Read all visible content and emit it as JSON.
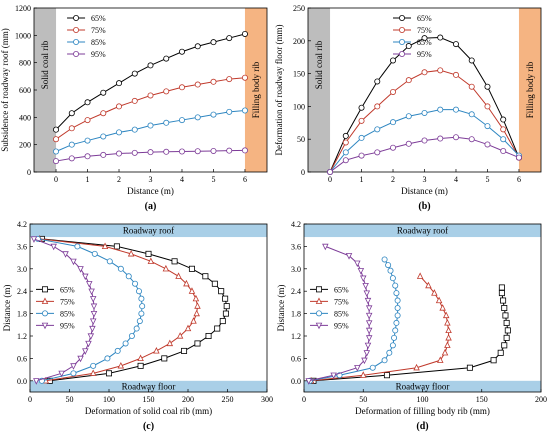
{
  "chart_data": [
    {
      "type": "line",
      "caption": "(a)",
      "xlabel": "Distance (m)",
      "ylabel": "Subsidence of roadway roof (mm)",
      "xlim": [
        -0.7,
        6.7
      ],
      "ylim": [
        0,
        1200
      ],
      "xticks": [
        0,
        1,
        2,
        3,
        4,
        5,
        6
      ],
      "yticks": [
        0,
        200,
        400,
        600,
        800,
        1000,
        1200
      ],
      "left_band": "Solid coal rib",
      "right_band": "Filling body rib",
      "legend_position": "top-left",
      "x": [
        0,
        0.5,
        1,
        1.5,
        2,
        2.5,
        3,
        3.5,
        4,
        4.5,
        5,
        5.5,
        6
      ],
      "series": [
        {
          "name": "65%",
          "values": [
            310,
            430,
            510,
            580,
            650,
            720,
            780,
            830,
            880,
            920,
            950,
            980,
            1010
          ]
        },
        {
          "name": "75%",
          "values": [
            240,
            320,
            380,
            430,
            480,
            520,
            560,
            590,
            620,
            640,
            660,
            680,
            690
          ]
        },
        {
          "name": "85%",
          "values": [
            150,
            200,
            230,
            260,
            290,
            310,
            340,
            360,
            380,
            400,
            420,
            440,
            450
          ]
        },
        {
          "name": "95%",
          "values": [
            80,
            100,
            115,
            125,
            135,
            140,
            145,
            148,
            150,
            152,
            154,
            156,
            158
          ]
        }
      ]
    },
    {
      "type": "line",
      "caption": "(b)",
      "xlabel": "Distance (m)",
      "ylabel": "Deformation of roadway floor (mm)",
      "xlim": [
        -0.7,
        6.7
      ],
      "ylim": [
        0,
        250
      ],
      "xticks": [
        0,
        1,
        2,
        3,
        4,
        5,
        6
      ],
      "yticks": [
        0,
        50,
        100,
        150,
        200,
        250
      ],
      "left_band": "Solid coal rib",
      "right_band": "Filling body rib",
      "legend_position": "top-right",
      "x": [
        0,
        0.5,
        1,
        1.5,
        2,
        2.5,
        3,
        3.5,
        4,
        4.5,
        5,
        5.5,
        6
      ],
      "series": [
        {
          "name": "65%",
          "values": [
            0,
            55,
            98,
            138,
            170,
            192,
            204,
            205,
            195,
            170,
            130,
            80,
            22
          ]
        },
        {
          "name": "75%",
          "values": [
            0,
            45,
            78,
            100,
            122,
            140,
            152,
            155,
            148,
            130,
            100,
            65,
            22
          ]
        },
        {
          "name": "85%",
          "values": [
            0,
            30,
            52,
            65,
            76,
            85,
            90,
            95,
            95,
            88,
            70,
            50,
            25
          ]
        },
        {
          "name": "95%",
          "values": [
            0,
            18,
            25,
            30,
            37,
            43,
            48,
            51,
            53,
            50,
            42,
            32,
            22
          ]
        }
      ]
    },
    {
      "type": "line",
      "caption": "(c)",
      "xlabel": "Deformation of  solid coal rib (mm)",
      "ylabel": "Distance (m)",
      "xlim": [
        0,
        300
      ],
      "ylim": [
        -0.3,
        4.2
      ],
      "xticks": [
        0,
        50,
        100,
        150,
        200,
        250,
        300
      ],
      "yticks": [
        0.0,
        0.6,
        1.2,
        1.8,
        2.4,
        3.0,
        3.6,
        4.2
      ],
      "top_band": "Roadway roof",
      "bottom_band": "Roadway floor",
      "legend_position": "left",
      "y": [
        0,
        0.2,
        0.4,
        0.6,
        0.8,
        1.0,
        1.2,
        1.4,
        1.6,
        1.8,
        2.0,
        2.2,
        2.4,
        2.6,
        2.8,
        3.0,
        3.2,
        3.4,
        3.6,
        3.8
      ],
      "series": [
        {
          "name": "65%",
          "values": [
            25,
            100,
            140,
            170,
            195,
            212,
            226,
            237,
            244,
            248,
            249,
            247,
            242,
            234,
            222,
            205,
            183,
            150,
            110,
            15
          ]
        },
        {
          "name": "75%",
          "values": [
            20,
            80,
            115,
            140,
            160,
            177,
            190,
            200,
            207,
            211,
            212,
            210,
            205,
            198,
            188,
            172,
            153,
            128,
            95,
            12
          ]
        },
        {
          "name": "85%",
          "values": [
            15,
            55,
            80,
            98,
            111,
            121,
            129,
            135,
            139,
            141,
            142,
            141,
            138,
            133,
            125,
            115,
            101,
            82,
            60,
            10
          ]
        },
        {
          "name": "95%",
          "values": [
            8,
            40,
            55,
            64,
            70,
            74,
            77,
            79,
            80,
            81,
            81,
            80,
            78,
            75,
            70,
            64,
            55,
            45,
            30,
            5
          ]
        }
      ]
    },
    {
      "type": "line",
      "caption": "(d)",
      "xlabel": "Deformation of  filling body rib (mm)",
      "ylabel": "Distance (m)",
      "xlim": [
        0,
        200
      ],
      "ylim": [
        -0.3,
        4.2
      ],
      "xticks": [
        0,
        50,
        100,
        150,
        200
      ],
      "yticks": [
        0.0,
        0.6,
        1.2,
        1.8,
        2.4,
        3.0,
        3.6,
        4.2
      ],
      "top_band": "Roadway roof",
      "bottom_band": "Roadway floor",
      "legend_position": "left",
      "series": [
        {
          "name": "65%",
          "y": [
            0,
            0.15,
            0.35,
            0.55,
            0.75,
            0.95,
            1.15,
            1.35,
            1.55,
            1.75,
            1.95,
            2.15,
            2.35,
            2.5
          ],
          "values": [
            8,
            70,
            140,
            160,
            166,
            169,
            171,
            172,
            171,
            170,
            169,
            168,
            167,
            167
          ]
        },
        {
          "name": "75%",
          "y": [
            0,
            0.15,
            0.35,
            0.55,
            0.75,
            0.95,
            1.15,
            1.35,
            1.55,
            1.75,
            1.95,
            2.15,
            2.35,
            2.55,
            2.8
          ],
          "values": [
            6,
            50,
            95,
            115,
            119,
            121,
            122,
            122,
            121,
            120,
            117,
            114,
            110,
            105,
            98
          ]
        },
        {
          "name": "85%",
          "y": [
            0,
            0.15,
            0.35,
            0.55,
            0.75,
            0.95,
            1.15,
            1.35,
            1.55,
            1.75,
            1.95,
            2.15,
            2.35,
            2.55,
            2.75,
            2.95,
            3.1,
            3.25
          ],
          "values": [
            5,
            30,
            58,
            68,
            72,
            75,
            76,
            77,
            78,
            79,
            79,
            79,
            78,
            77,
            75,
            73,
            71,
            68
          ]
        },
        {
          "name": "95%",
          "y": [
            0,
            0.15,
            0.35,
            0.55,
            0.75,
            0.95,
            1.15,
            1.35,
            1.55,
            1.75,
            1.95,
            2.15,
            2.35,
            2.55,
            2.75,
            2.95,
            3.15,
            3.35,
            3.6
          ],
          "values": [
            4,
            25,
            45,
            51,
            53,
            54,
            55,
            55,
            55,
            55,
            55,
            54,
            53,
            52,
            50,
            48,
            45,
            38,
            18
          ]
        }
      ]
    }
  ],
  "colors": {
    "65%": "#000000",
    "75%": "#c0392b",
    "85%": "#2e86c1",
    "95%": "#7d3c98",
    "band_gray": "#bdbdbd",
    "band_orange": "#f5b482",
    "band_blue": "#a9cfe7"
  },
  "markers": {
    "a": "circle",
    "b": "circle",
    "c_65%": "square",
    "c_75%": "triangle",
    "c_85%": "circle",
    "c_95%": "triangle-down",
    "d_65%": "square",
    "d_75%": "triangle",
    "d_85%": "circle",
    "d_95%": "triangle-down"
  }
}
